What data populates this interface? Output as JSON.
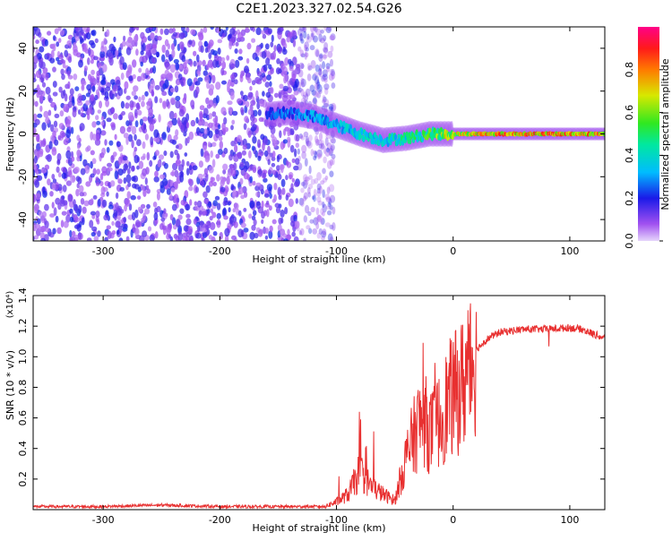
{
  "title": "C2E1.2023.327.02.54.G26",
  "colors": {
    "snr_line": "#e83030",
    "spectrogram_noise": "#7a1cf0",
    "spectrogram_peak": "#e83030"
  },
  "chart_data": [
    {
      "type": "heatmap",
      "xlabel": "Height of straight line (km)",
      "ylabel": "Frequency (Hz)",
      "xlim": [
        -360,
        130
      ],
      "ylim": [
        -50,
        50
      ],
      "x_ticks": [
        -300,
        -200,
        -100,
        0,
        100
      ],
      "y_ticks": [
        -40,
        -20,
        0,
        20,
        40
      ],
      "grid": false,
      "colorbar": {
        "label": "Normalized spectral amplitude",
        "range": [
          0.0,
          1.0
        ],
        "ticks": [
          0.0,
          0.2,
          0.4,
          0.6,
          0.8
        ],
        "colormap": "rainbow (purple-blue-cyan-green-yellow-red-magenta)"
      },
      "features": {
        "noise_region_x": [
          -360,
          -110
        ],
        "signal_trace": {
          "x": [
            -160,
            -140,
            -120,
            -100,
            -80,
            -60,
            -40,
            -20,
            0,
            20,
            40,
            60,
            80,
            100,
            130
          ],
          "frequency": [
            9,
            10,
            8,
            4,
            0,
            -3,
            -2,
            0,
            0,
            0,
            0,
            0,
            0,
            0,
            0
          ],
          "amplitude": [
            0.25,
            0.3,
            0.35,
            0.4,
            0.45,
            0.45,
            0.5,
            0.6,
            0.75,
            0.85,
            0.9,
            0.9,
            0.9,
            0.9,
            0.85
          ]
        }
      }
    },
    {
      "type": "line",
      "xlabel": "Height of straight line (km)",
      "ylabel": "SNR (10 * v/v)",
      "y_scale_label": "(x10⁴)",
      "xlim": [
        -360,
        130
      ],
      "ylim": [
        0,
        1.4
      ],
      "x_ticks": [
        -300,
        -200,
        -100,
        0,
        100
      ],
      "y_ticks": [
        0.2,
        0.4,
        0.6,
        0.8,
        1.0,
        1.2,
        1.4
      ],
      "grid": false,
      "series": [
        {
          "color": "#e83030",
          "x": [
            -360,
            -300,
            -250,
            -200,
            -150,
            -110,
            -100,
            -90,
            -80,
            -70,
            -60,
            -50,
            -45,
            -40,
            -35,
            -30,
            -25,
            -20,
            -15,
            -10,
            -5,
            0,
            5,
            10,
            20,
            30,
            40,
            60,
            80,
            100,
            110,
            120,
            130
          ],
          "y": [
            0.02,
            0.02,
            0.03,
            0.02,
            0.02,
            0.02,
            0.05,
            0.1,
            0.25,
            0.15,
            0.1,
            0.06,
            0.2,
            0.35,
            0.45,
            0.55,
            0.6,
            0.5,
            0.55,
            0.6,
            0.7,
            0.75,
            0.78,
            0.85,
            1.05,
            1.12,
            1.16,
            1.18,
            1.18,
            1.19,
            1.18,
            1.15,
            1.12
          ]
        }
      ]
    }
  ]
}
